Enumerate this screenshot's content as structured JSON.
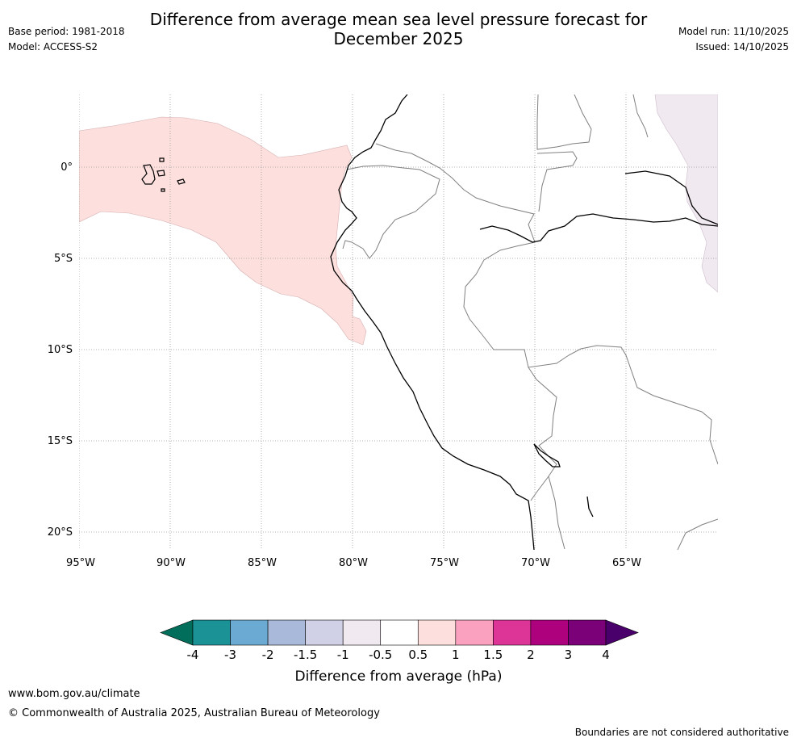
{
  "header": {
    "title_line1": "Difference from average mean sea level pressure forecast for",
    "title_line2": "December 2025",
    "base_period": "Base period: 1981-2018",
    "model": "Model: ACCESS-S2",
    "model_run": "Model run: 11/10/2025",
    "issued": "Issued: 14/10/2025"
  },
  "map": {
    "lat_labels": [
      "0°",
      "5°S",
      "10°S",
      "15°S",
      "20°S"
    ],
    "lon_labels": [
      "95°W",
      "90°W",
      "85°W",
      "80°W",
      "75°W",
      "70°W",
      "65°W"
    ],
    "colors": {
      "anomaly_positive_0_5_1": "#fde0dd",
      "anomaly_negative_0_5": "#f1e9f0",
      "coastline": "#000000",
      "border": "#808080",
      "gridline": "#999999"
    }
  },
  "legend": {
    "title": "Difference from average (hPa)",
    "ticks": [
      "-4",
      "-3",
      "-2",
      "-1.5",
      "-1",
      "-0.5",
      "0.5",
      "1",
      "1.5",
      "2",
      "3",
      "4"
    ],
    "bins": [
      {
        "label": "< -4",
        "color": "#006e5a"
      },
      {
        "label": "-4 to -3",
        "color": "#1a9296"
      },
      {
        "label": "-3 to -2",
        "color": "#6baad2"
      },
      {
        "label": "-2 to -1.5",
        "color": "#a8b9da"
      },
      {
        "label": "-1.5 to -1",
        "color": "#d0d0e6"
      },
      {
        "label": "-1 to -0.5",
        "color": "#f1e9f0"
      },
      {
        "label": "-0.5 to 0.5",
        "color": "#ffffff"
      },
      {
        "label": "0.5 to 1",
        "color": "#fde0dd"
      },
      {
        "label": "1 to 1.5",
        "color": "#f9a1be"
      },
      {
        "label": "1.5 to 2",
        "color": "#dd3497"
      },
      {
        "label": "2 to 3",
        "color": "#ae017e"
      },
      {
        "label": "3 to 4",
        "color": "#7a0177"
      },
      {
        "label": "> 4",
        "color": "#49006a"
      }
    ]
  },
  "footer": {
    "website": "www.bom.gov.au/climate",
    "copyright": "© Commonwealth of Australia 2025, Australian Bureau of Meteorology",
    "disclaimer": "Boundaries are not considered authoritative"
  }
}
